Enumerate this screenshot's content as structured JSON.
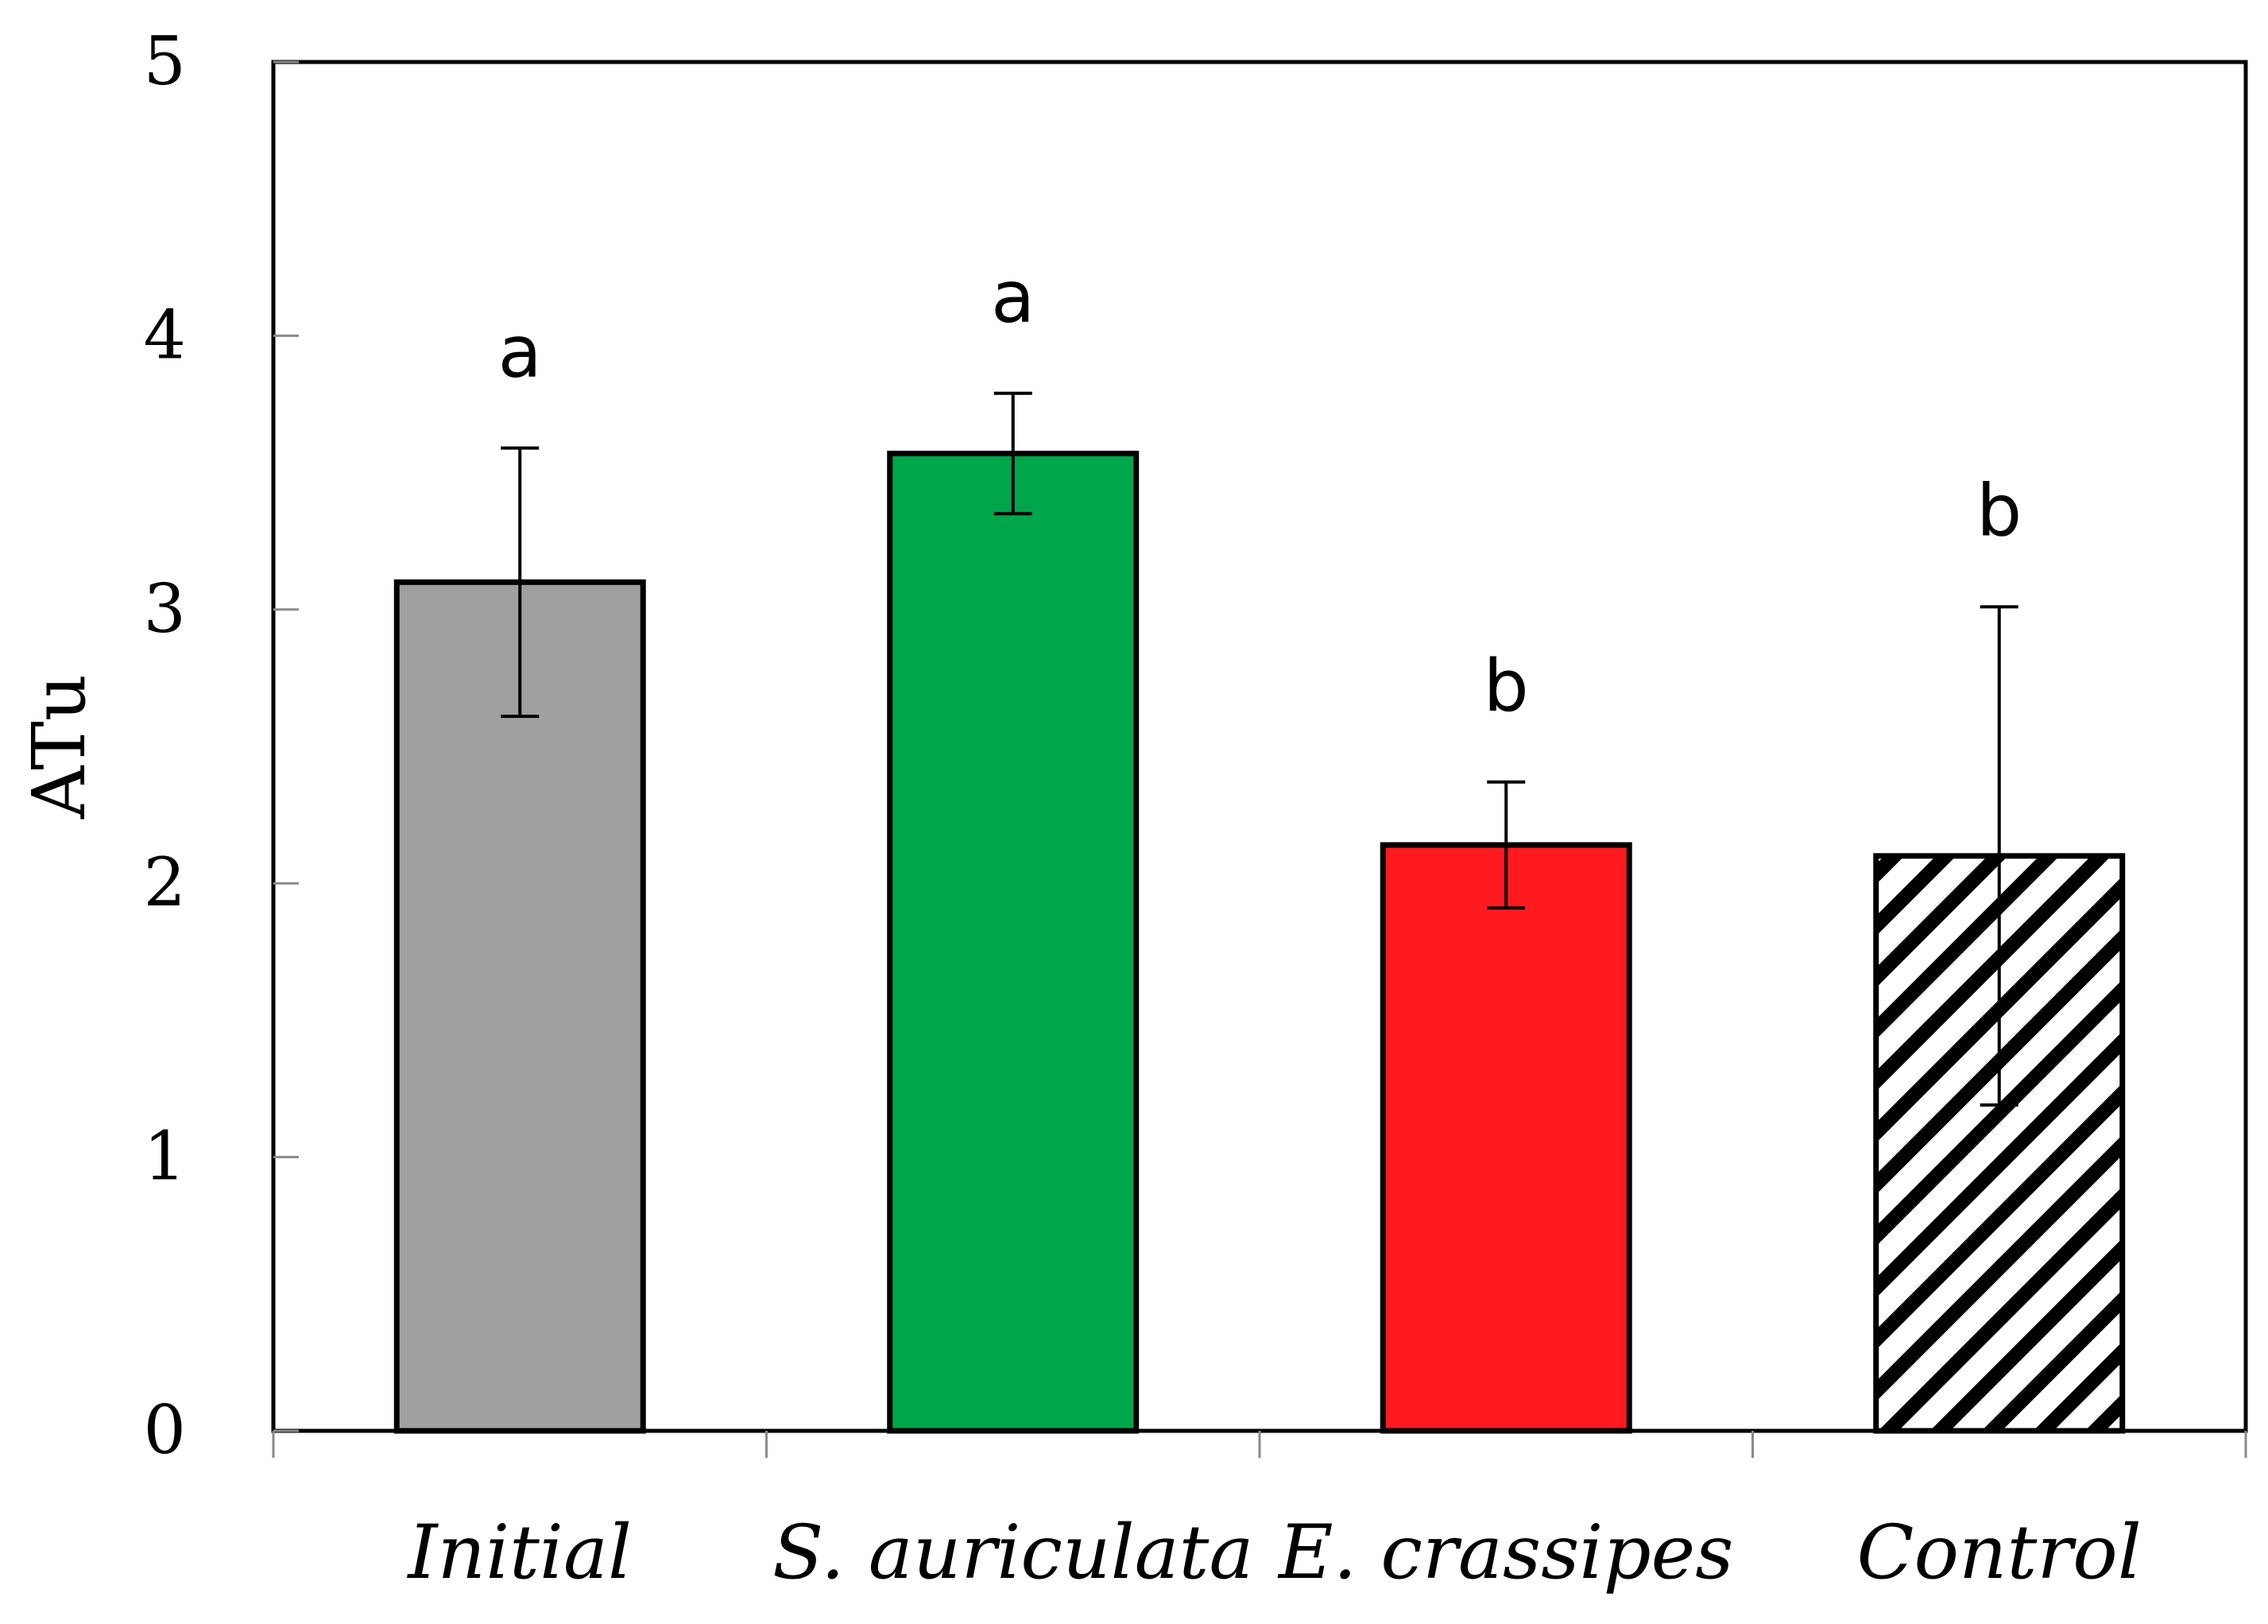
{
  "chart_data": {
    "type": "bar",
    "title": "",
    "xlabel": "",
    "ylabel": "ATu",
    "ylim": [
      0,
      5
    ],
    "yticks": [
      "0",
      "1",
      "2",
      "3",
      "4",
      "5"
    ],
    "grid": false,
    "legend": "none",
    "categories": [
      "Initial",
      "S. auriculata",
      "E. crassipes",
      "Control"
    ],
    "values": [
      3.1,
      3.57,
      2.14,
      2.1
    ],
    "errors": [
      0.49,
      0.22,
      0.23,
      0.91
    ],
    "significance": [
      "a",
      "a",
      "b",
      "b"
    ],
    "colors": [
      "#a0a0a0",
      "#00a64a",
      "#ff1a1f",
      "hatched"
    ]
  }
}
